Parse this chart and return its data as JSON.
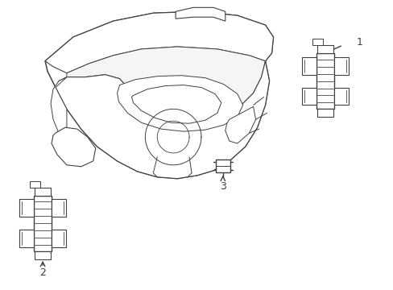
{
  "background_color": "#ffffff",
  "line_color": "#404040",
  "line_width": 1.0,
  "label_1": "1",
  "label_2": "2",
  "label_3": "3",
  "fig_width": 4.89,
  "fig_height": 3.6,
  "dpi": 100
}
